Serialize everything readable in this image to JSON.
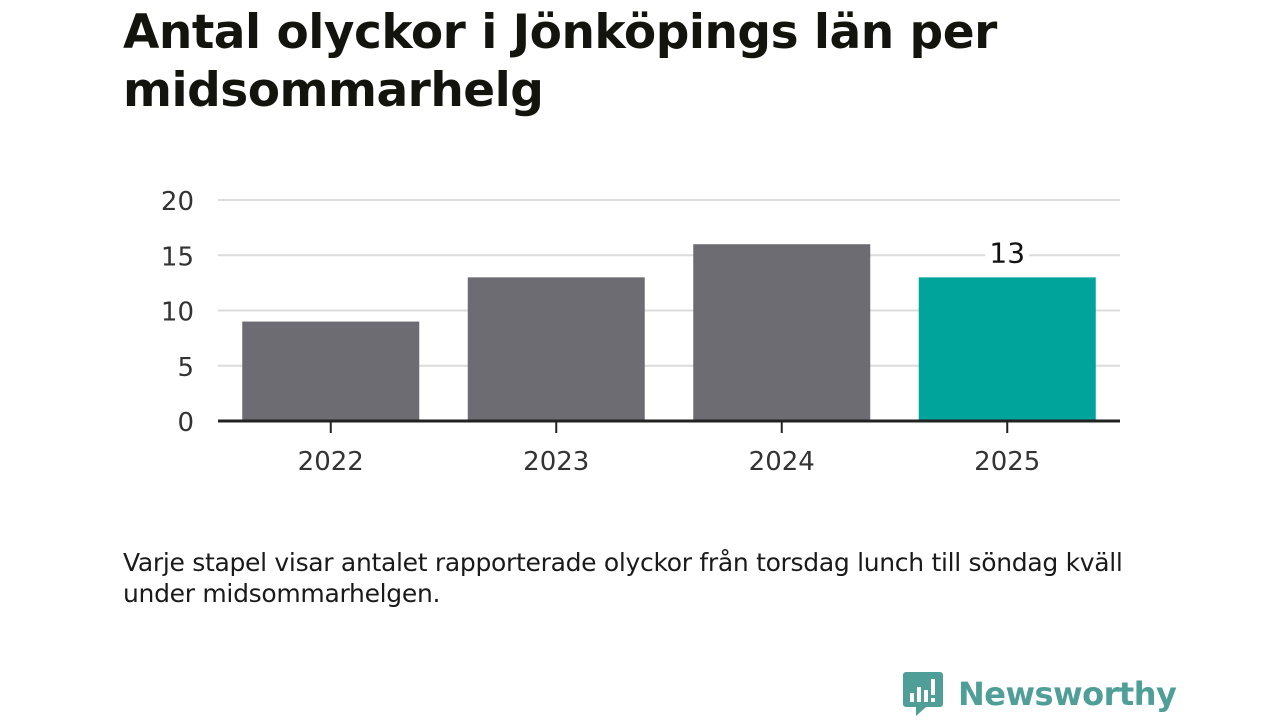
{
  "chart_data": {
    "type": "bar",
    "title": "Antal olyckor i Jönköpings län per midsommarhelg",
    "categories": [
      "2022",
      "2023",
      "2024",
      "2025"
    ],
    "values": [
      9,
      13,
      16,
      13
    ],
    "ylim": [
      0,
      20
    ],
    "yticks": [
      "0",
      "5",
      "10",
      "15",
      "20"
    ],
    "xlabel": "",
    "ylabel": "",
    "grid": true,
    "bar_color": "#6d6c72",
    "highlight_color": "#00a49a",
    "highlight_index": 3,
    "data_labels": [
      {
        "category": "2025",
        "text": "13"
      }
    ]
  },
  "note": "Varje stapel visar antalet rapporterade olyckor från torsdag lunch till söndag kväll under midsommarhelgen.",
  "brand": {
    "name": "Newsworthy",
    "icon": "newsworthy-logo-icon",
    "color": "#4f9e98"
  }
}
